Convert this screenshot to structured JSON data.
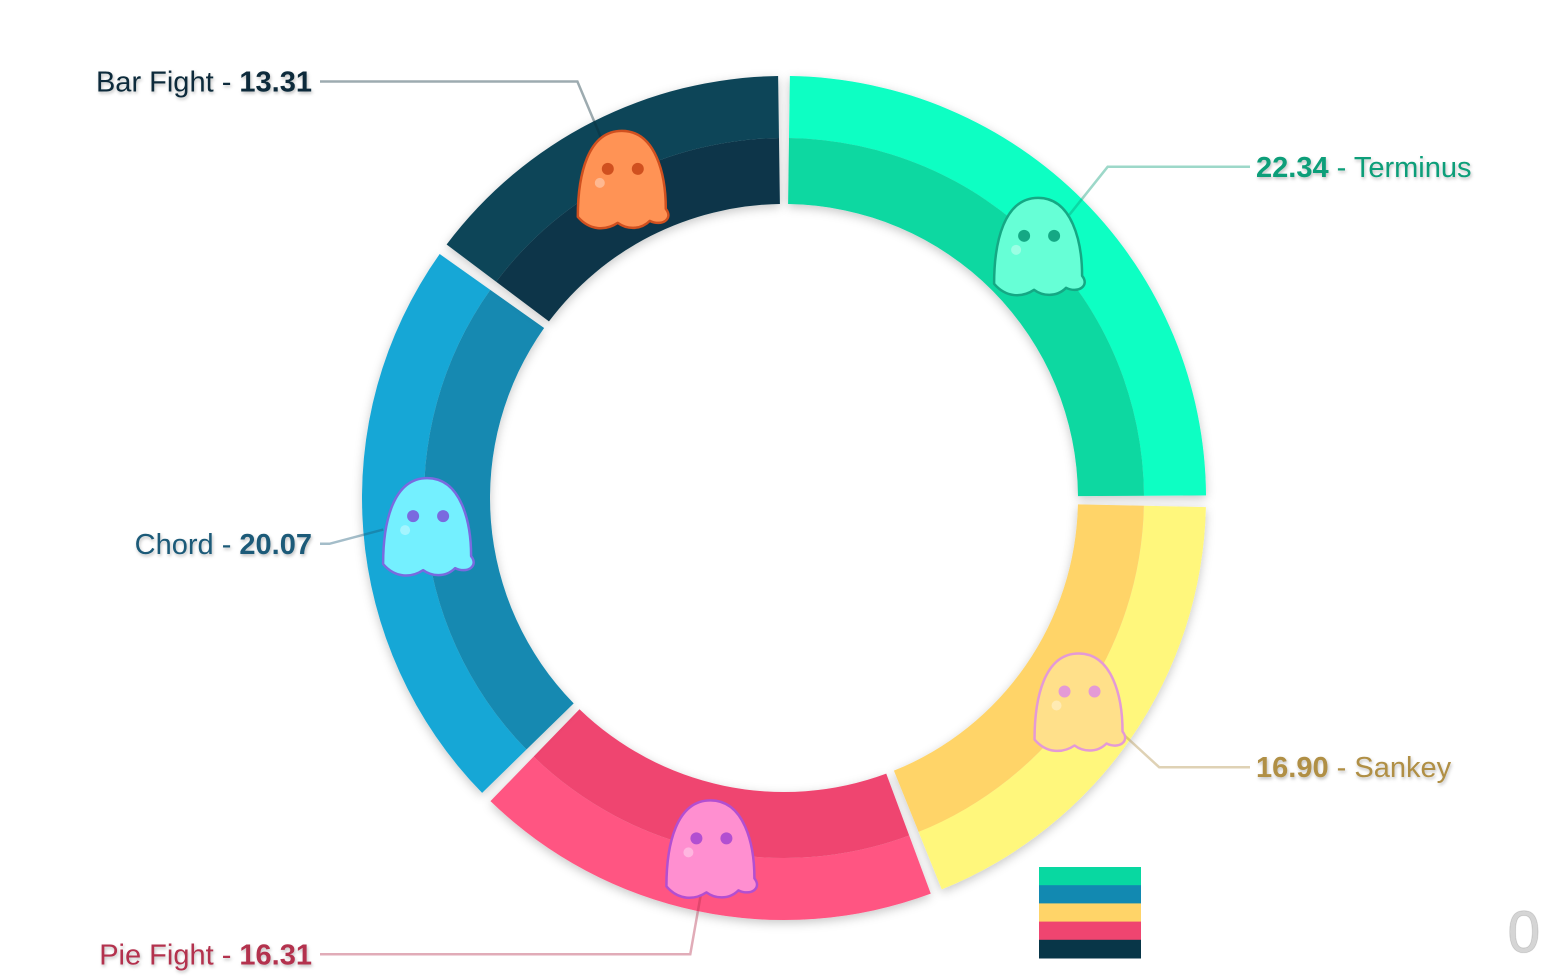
{
  "chart_data": {
    "type": "pie",
    "donut": true,
    "segments": [
      {
        "name": "Terminus",
        "value": 22.34,
        "value_text": "22.34",
        "outer_color": "#07ffc3",
        "inner_color": "#08d8a1",
        "label_color": "#0a9e79",
        "mascot_icon": "ghost-eating-popcorn-icon",
        "label_side": "right",
        "value_first": true
      },
      {
        "name": "Sankey",
        "value": 16.9,
        "value_text": "16.90",
        "outer_color": "#fff77b",
        "inner_color": "#ffd468",
        "label_color": "#b08f45",
        "mascot_icon": "ghost-eating-noodles-icon",
        "label_side": "right",
        "value_first": true
      },
      {
        "name": "Pie Fight",
        "value": 16.31,
        "value_text": "16.31",
        "outer_color": "#ff5582",
        "inner_color": "#ef4570",
        "label_color": "#b3304d",
        "mascot_icon": "ghost-eating-candy-icon",
        "label_side": "left",
        "value_first": false
      },
      {
        "name": "Chord",
        "value": 20.07,
        "value_text": "20.07",
        "outer_color": "#16a7d6",
        "inner_color": "#1289b1",
        "label_color": "#1b5a78",
        "mascot_icon": "ghost-drinking-soda-icon",
        "label_side": "left",
        "value_first": false
      },
      {
        "name": "Bar Fight",
        "value": 13.31,
        "value_text": "13.31",
        "outer_color": "#0b4459",
        "inner_color": "#083648",
        "label_color": "#0b2c3a",
        "mascot_icon": "ghost-drinking-boba-icon",
        "label_side": "left",
        "value_first": false
      }
    ],
    "label_separator": " - ",
    "swatch_colors": [
      "#08d8a1",
      "#1289b1",
      "#ffd468",
      "#ef4570",
      "#083648"
    ]
  },
  "counter": "0"
}
